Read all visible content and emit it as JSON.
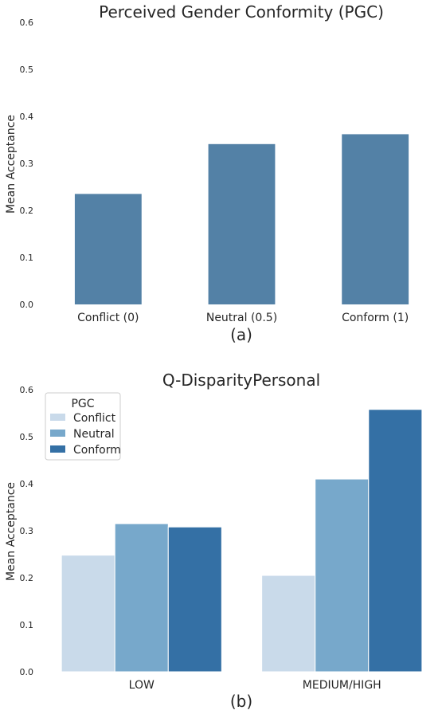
{
  "chart_data": [
    {
      "type": "bar",
      "title": "Perceived Gender Conformity (PGC)",
      "ylabel": "Mean Acceptance",
      "xlabel": "",
      "categories": [
        "Conflict (0)",
        "Neutral (0.5)",
        "Conform (1)"
      ],
      "values": [
        0.235,
        0.341,
        0.362
      ],
      "ylim": [
        0,
        0.6
      ],
      "yticks": [
        "0.0",
        "0.1",
        "0.2",
        "0.3",
        "0.4",
        "0.5",
        "0.6"
      ],
      "panel_label": "(a)",
      "grid": false,
      "color": "#5381a6"
    },
    {
      "type": "bar",
      "title": "Q-DisparityPersonal",
      "ylabel": "Mean Acceptance",
      "xlabel": "",
      "categories": [
        "LOW",
        "MEDIUM/HIGH"
      ],
      "series": [
        {
          "name": "Conflict",
          "values": [
            0.248,
            0.205
          ],
          "color": "#c9daea"
        },
        {
          "name": "Neutral",
          "values": [
            0.315,
            0.41
          ],
          "color": "#77a8cb"
        },
        {
          "name": "Conform",
          "values": [
            0.308,
            0.558
          ],
          "color": "#3470a5"
        }
      ],
      "ylim": [
        0,
        0.6
      ],
      "yticks": [
        "0.0",
        "0.1",
        "0.2",
        "0.3",
        "0.4",
        "0.5",
        "0.6"
      ],
      "legend_title": "PGC",
      "legend_position": "top-left",
      "panel_label": "(b)",
      "grid": false
    }
  ]
}
